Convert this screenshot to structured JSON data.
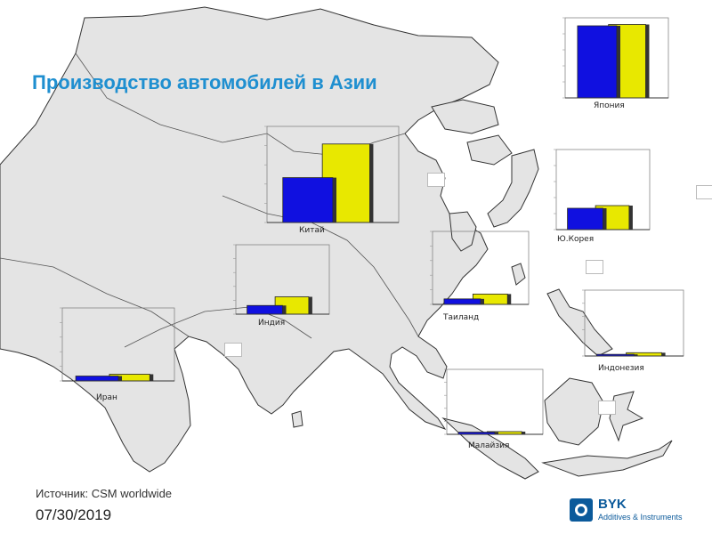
{
  "slide": {
    "title": "Производство автомобилей в Азии",
    "source": "Источник: CSM worldwide",
    "date": "07/30/2019",
    "logo": {
      "name": "BYK",
      "subtitle": "Additives & Instruments"
    }
  },
  "colors": {
    "series1": "#1010e0",
    "series2": "#e8e800",
    "map_land": "#e4e4e4",
    "map_border": "#333333",
    "title": "#1f8fd0",
    "brand": "#0b5a9b"
  },
  "chart_data": [
    {
      "type": "bar",
      "label": "Япония",
      "series": [
        {
          "values": [
            10.8
          ]
        },
        {
          "values": [
            11.0
          ]
        }
      ],
      "ylim": [
        0,
        12
      ]
    },
    {
      "type": "bar",
      "label": "Китай",
      "series": [
        {
          "values": [
            5.6
          ]
        },
        {
          "values": [
            9.8
          ]
        }
      ],
      "ylim": [
        0,
        12
      ]
    },
    {
      "type": "bar",
      "label": "Ю.Корея",
      "series": [
        {
          "values": [
            3.2
          ]
        },
        {
          "values": [
            3.6
          ]
        }
      ],
      "ylim": [
        0,
        12
      ]
    },
    {
      "type": "bar",
      "label": "Индия",
      "series": [
        {
          "values": [
            1.5
          ]
        },
        {
          "values": [
            3.0
          ]
        }
      ],
      "ylim": [
        0,
        12
      ]
    },
    {
      "type": "bar",
      "label": "Таиланд",
      "series": [
        {
          "values": [
            0.9
          ]
        },
        {
          "values": [
            1.7
          ]
        }
      ],
      "ylim": [
        0,
        12
      ]
    },
    {
      "type": "bar",
      "label": "Иран",
      "series": [
        {
          "values": [
            0.8
          ]
        },
        {
          "values": [
            1.1
          ]
        }
      ],
      "ylim": [
        0,
        12
      ]
    },
    {
      "type": "bar",
      "label": "Индонезия",
      "series": [
        {
          "values": [
            0.3
          ]
        },
        {
          "values": [
            0.6
          ]
        }
      ],
      "ylim": [
        0,
        12
      ]
    },
    {
      "type": "bar",
      "label": "Малайзия",
      "series": [
        {
          "values": [
            0.4
          ]
        },
        {
          "values": [
            0.5
          ]
        }
      ],
      "ylim": [
        0,
        12
      ]
    }
  ]
}
